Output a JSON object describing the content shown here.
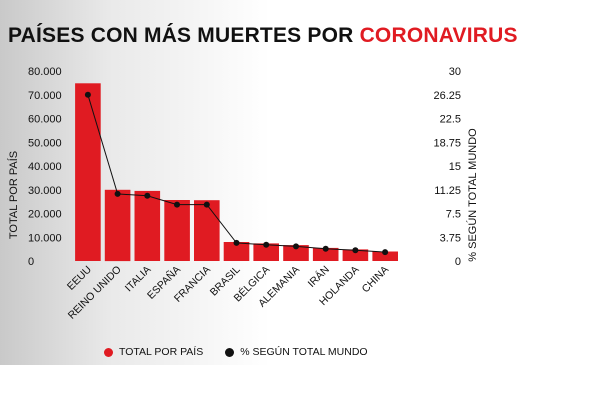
{
  "title": {
    "prefix": "PAÍSES CON MÁS  MUERTES POR ",
    "highlight": "CORONAVIRUS"
  },
  "colors": {
    "bar": "#e01b22",
    "line": "#111111",
    "highlight": "#e01b22"
  },
  "chart_data": {
    "type": "bar",
    "categories": [
      "EEUU",
      "REINO UNIDO",
      "ITALIA",
      "ESPAÑA",
      "FRANCIA",
      "BRASIL",
      "BÉLGICA",
      "ALEMANIA",
      "IRÁN",
      "HOLANDA",
      "CHINA"
    ],
    "series": [
      {
        "name": "TOTAL POR PAÍS",
        "type": "bar",
        "axis": "left",
        "values": [
          74800,
          30000,
          29500,
          25700,
          25600,
          8000,
          7400,
          6700,
          5500,
          4900,
          4000
        ]
      },
      {
        "name": "% SEGÚN TOTAL MUNDO",
        "type": "line",
        "axis": "right",
        "values": [
          26.25,
          10.6,
          10.3,
          8.9,
          8.9,
          2.85,
          2.55,
          2.3,
          1.95,
          1.7,
          1.4
        ]
      }
    ],
    "ylabel": "TOTAL POR PAÍS",
    "y2label": "% SEGÚN TOTAL MUNDO",
    "ylim": [
      0,
      80000
    ],
    "y2lim": [
      0,
      30
    ],
    "yticks": [
      "0",
      "10.000",
      "20.000",
      "30.000",
      "40.000",
      "50.000",
      "60.000",
      "70.000",
      "80.000"
    ],
    "y2ticks": [
      "0",
      "3.75",
      "7.5",
      "11.25",
      "15",
      "18.75",
      "22.5",
      "26.25",
      "30"
    ],
    "grid": false,
    "legend": "bottom"
  }
}
